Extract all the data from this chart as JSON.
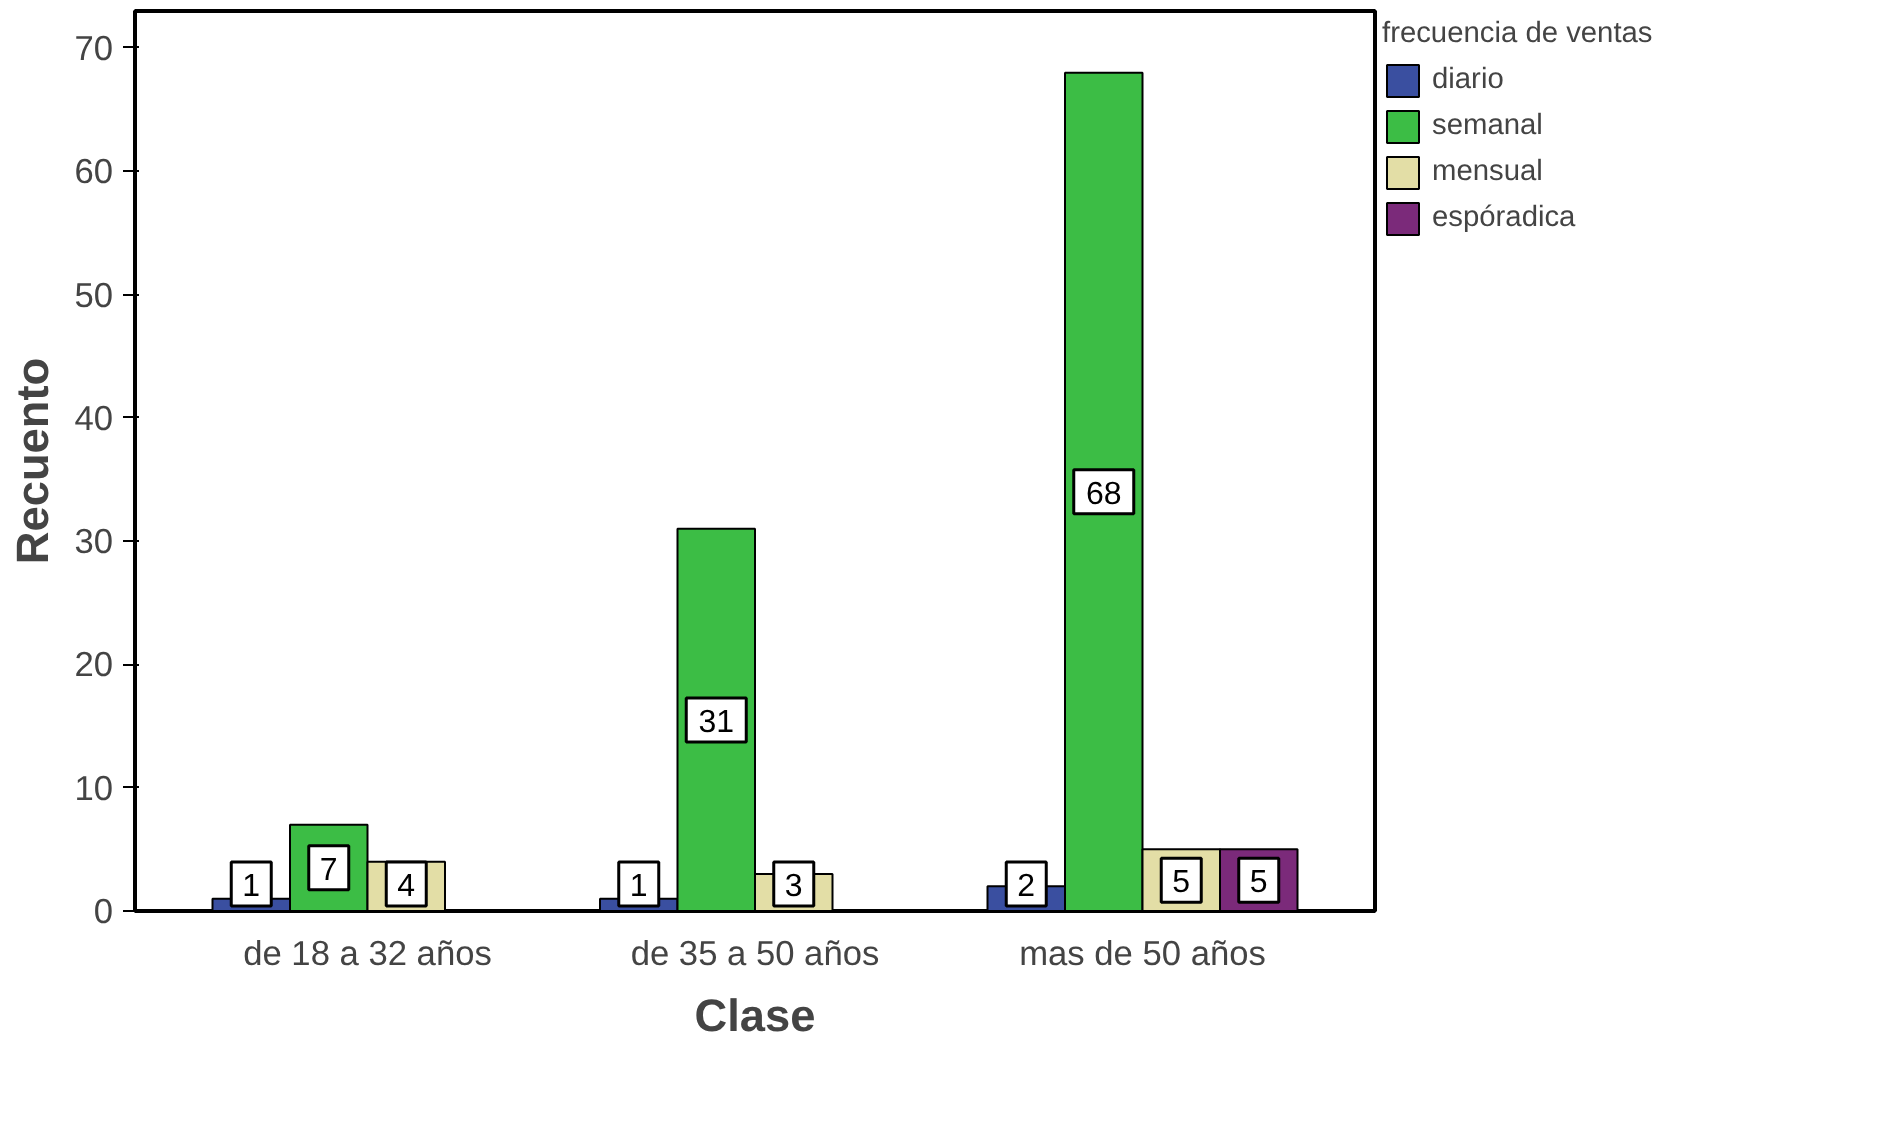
{
  "chart_data": {
    "type": "bar",
    "xlabel": "Clase",
    "ylabel": "Recuento",
    "legend_title": "frecuencia de ventas",
    "categories": [
      "de 18 a 32 años",
      "de 35 a 50 años",
      "mas de 50 años"
    ],
    "series": [
      {
        "name": "diario",
        "color": "#3a4fa0",
        "values": [
          1,
          1,
          2
        ]
      },
      {
        "name": "semanal",
        "color": "#3cbd45",
        "values": [
          7,
          31,
          68
        ]
      },
      {
        "name": "mensual",
        "color": "#e3dea6",
        "values": [
          4,
          3,
          5
        ]
      },
      {
        "name": "espóradica",
        "color": "#7b2a7a",
        "values": [
          null,
          null,
          5
        ]
      }
    ],
    "ylim": [
      0,
      73
    ],
    "yticks": [
      0,
      10,
      20,
      30,
      40,
      50,
      60,
      70
    ],
    "grid": false,
    "legend": "right",
    "data_labels": true
  }
}
